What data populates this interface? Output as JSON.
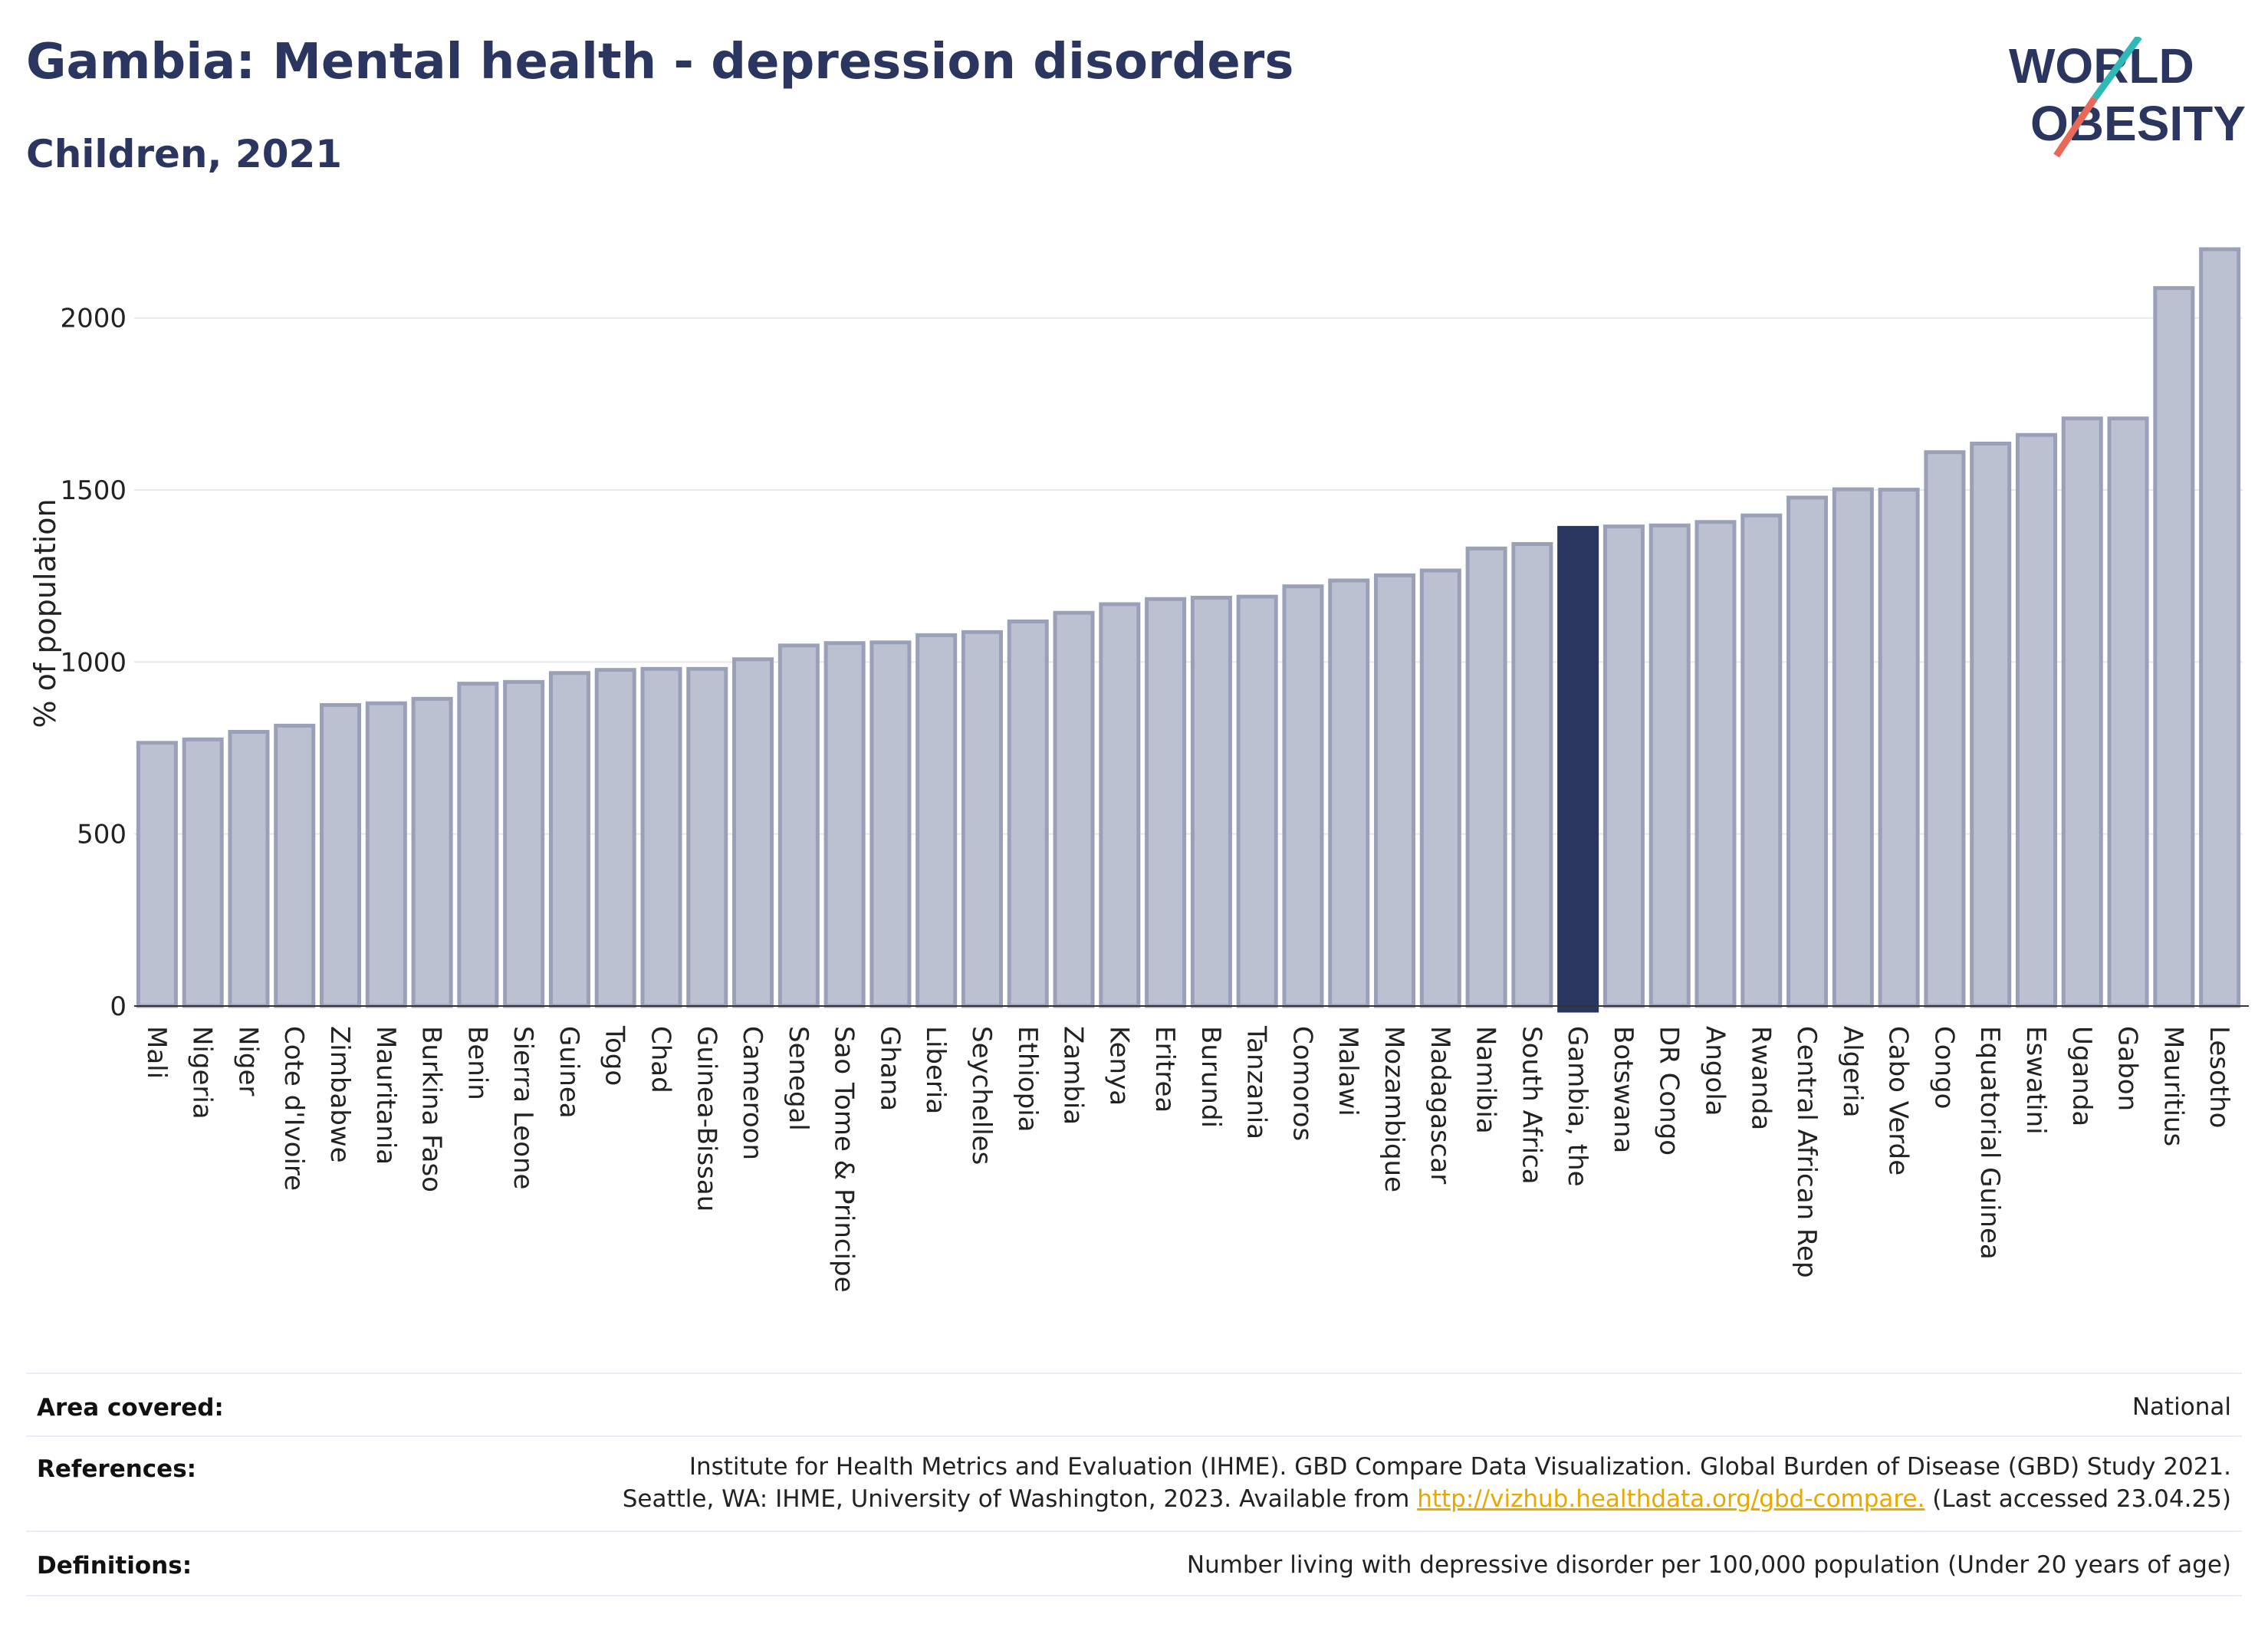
{
  "header": {
    "title": "Gambia: Mental health - depression disorders",
    "subtitle": "Children, 2021"
  },
  "logo": {
    "line1": "WORLD",
    "line2": "OBESITY",
    "brand_color": "#2a3560",
    "slash_colors": [
      "#2fb9b6",
      "#e8685a"
    ]
  },
  "chart_data": {
    "type": "bar",
    "ylabel": "% of population",
    "ylim": [
      0,
      2200
    ],
    "yticks": [
      0,
      500,
      1000,
      1500,
      2000
    ],
    "grid": true,
    "highlight": "Gambia, the",
    "colors": {
      "default": "#bcc1d1",
      "default_edge": "#9aa0b8",
      "highlight": "#2a3560"
    },
    "categories": [
      "Mali",
      "Nigeria",
      "Niger",
      "Cote d'Ivoire",
      "Zimbabwe",
      "Mauritania",
      "Burkina Faso",
      "Benin",
      "Sierra Leone",
      "Guinea",
      "Togo",
      "Chad",
      "Guinea-Bissau",
      "Cameroon",
      "Senegal",
      "Sao Tome & Principe",
      "Ghana",
      "Liberia",
      "Seychelles",
      "Ethiopia",
      "Zambia",
      "Kenya",
      "Eritrea",
      "Burundi",
      "Tanzania",
      "Comoros",
      "Malawi",
      "Mozambique",
      "Madagascar",
      "Namibia",
      "South Africa",
      "Gambia, the",
      "Botswana",
      "DR Congo",
      "Angola",
      "Rwanda",
      "Central African Rep",
      "Algeria",
      "Cabo Verde",
      "Congo",
      "Equatorial Guinea",
      "Eswatini",
      "Uganda",
      "Gabon",
      "Mauritius",
      "Lesotho"
    ],
    "values": [
      765,
      775,
      797,
      815,
      875,
      880,
      893,
      937,
      942,
      968,
      977,
      980,
      980,
      1008,
      1048,
      1055,
      1057,
      1078,
      1087,
      1118,
      1143,
      1168,
      1183,
      1187,
      1190,
      1220,
      1237,
      1252,
      1266,
      1330,
      1343,
      1390,
      1394,
      1397,
      1407,
      1426,
      1478,
      1502,
      1501,
      1610,
      1635,
      1660,
      1708,
      1708,
      2087,
      2200
    ]
  },
  "info": {
    "area_label": "Area covered:",
    "area_value": "National",
    "references_label": "References:",
    "references_line1": "Institute for Health Metrics and Evaluation (IHME). GBD Compare Data Visualization. Global Burden of Disease (GBD) Study 2021.",
    "references_line2_prefix": "Seattle, WA: IHME, University of Washington, 2023. Available from ",
    "references_link": "http://vizhub.healthdata.org/gbd-compare.",
    "references_line2_suffix": " (Last accessed 23.04.25)",
    "definitions_label": "Definitions:",
    "definitions_value": "Number living with depressive disorder per 100,000 population (Under 20 years of age)"
  }
}
